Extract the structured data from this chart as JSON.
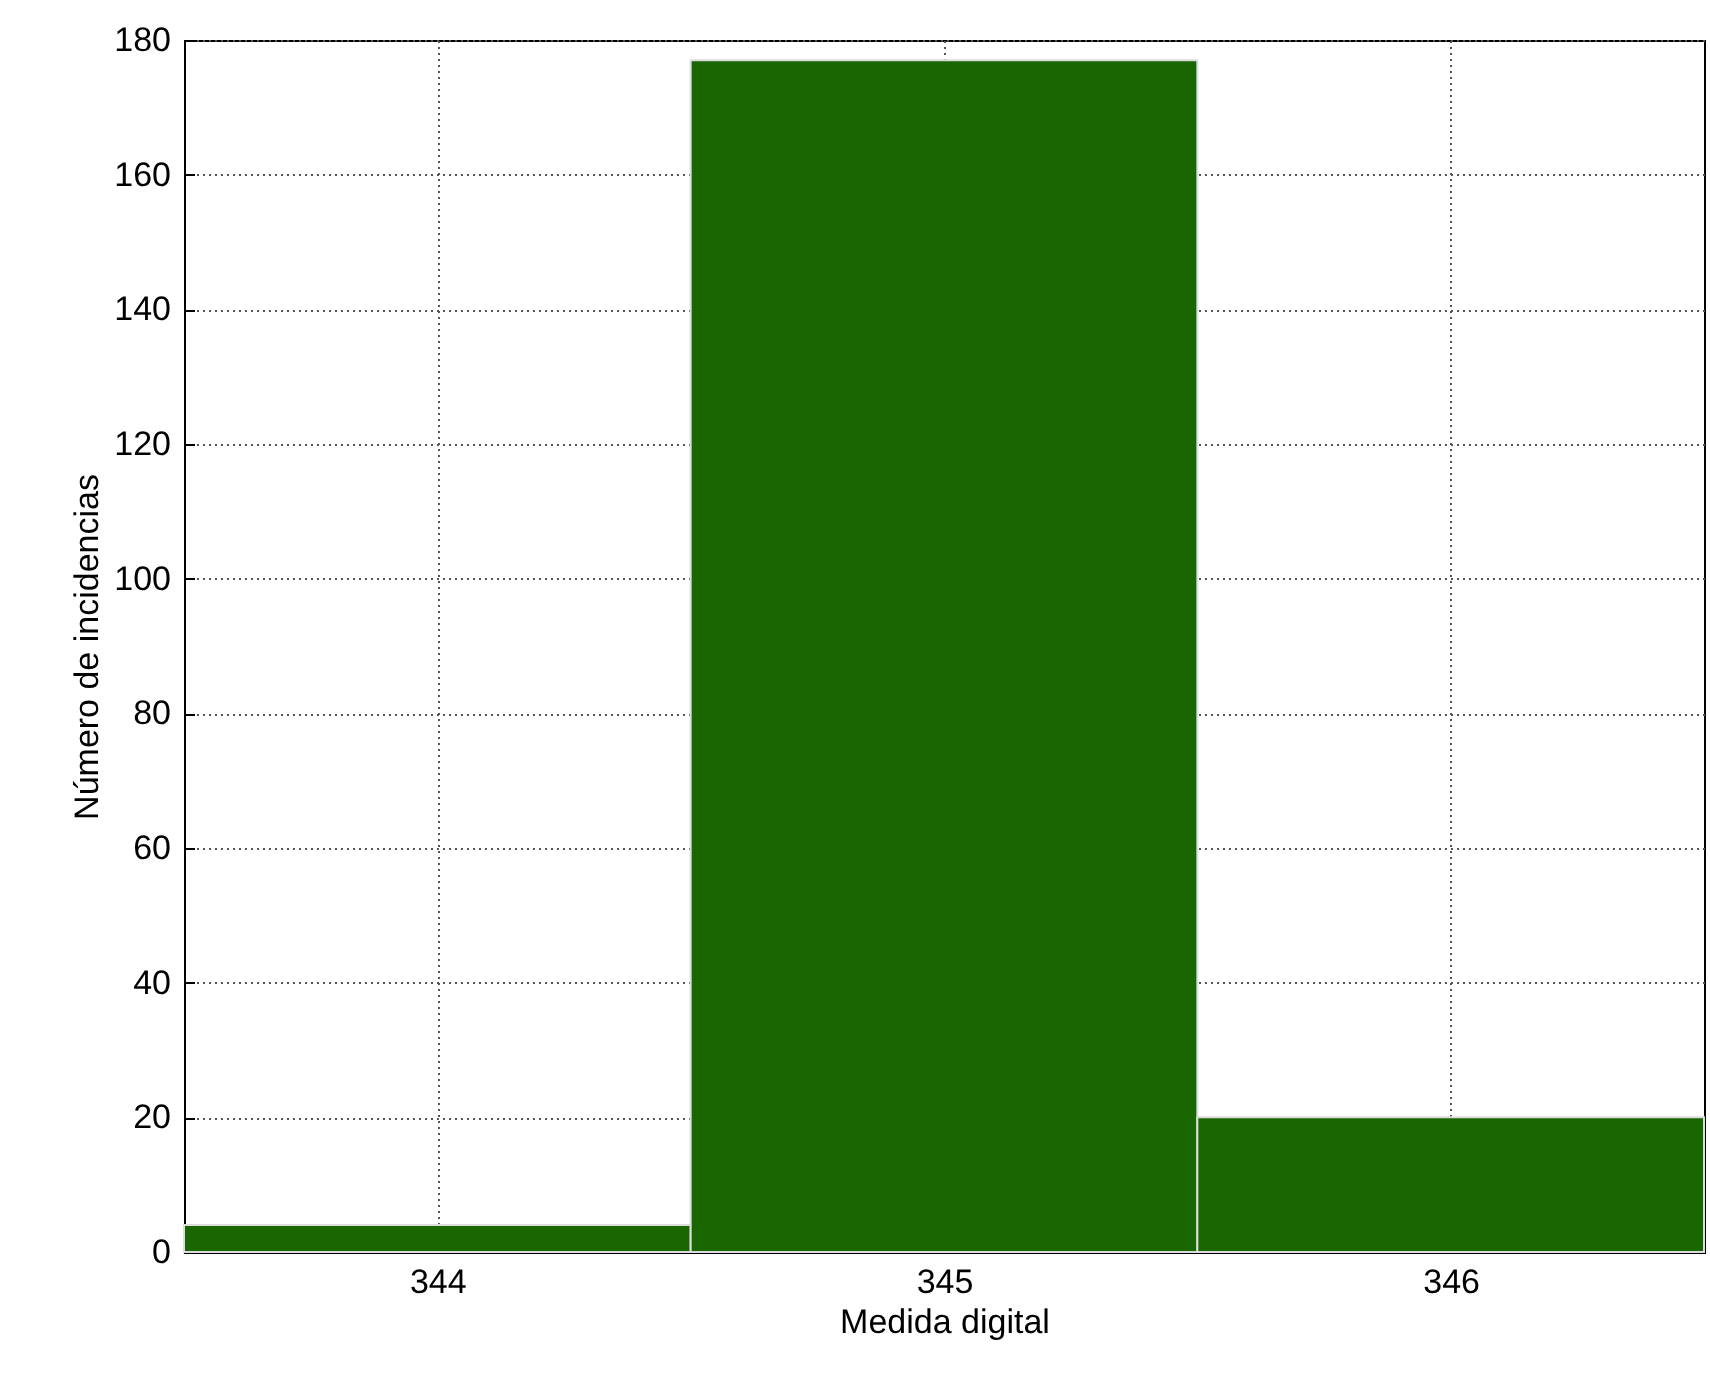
{
  "chart_data": {
    "type": "histogram",
    "xlabel": "Medida digital",
    "ylabel": "Número de incidencias",
    "bins": [
      343.5,
      344.5,
      345.5,
      346.5
    ],
    "values": [
      4,
      177,
      20
    ],
    "color": "#1a6600",
    "xlim": [
      343.5,
      346.5
    ],
    "xticks": [
      344,
      345,
      346
    ],
    "ylim": [
      0,
      180
    ],
    "yticks": [
      0,
      20,
      40,
      60,
      80,
      100,
      120,
      140,
      160,
      180
    ],
    "grid": true
  }
}
